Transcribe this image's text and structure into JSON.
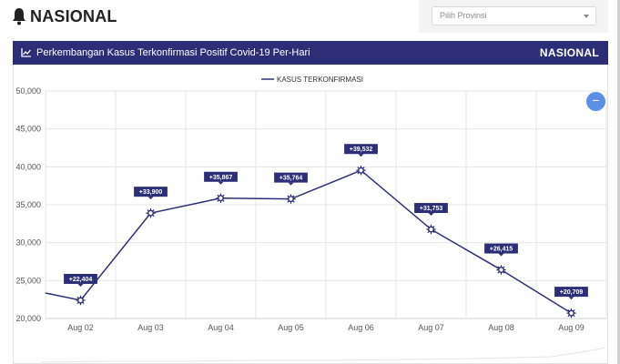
{
  "header": {
    "page_title": "NASIONAL",
    "province_select": {
      "selected": "Pilih Provinsi"
    }
  },
  "panel": {
    "title": "Perkembangan Kasus Terkonfirmasi Positif Covid-19 Per-Hari",
    "scope": "NASIONAL",
    "zoom_button": "−"
  },
  "colors": {
    "accent": "#2c2f77",
    "button": "#5b8ee6"
  },
  "chart_data": {
    "type": "line",
    "title": "Perkembangan Kasus Terkonfirmasi Positif Covid-19 Per-Hari",
    "legend": "KASUS TERKONFIRMASI",
    "legend_position": "top-center",
    "categories": [
      "Aug 02",
      "Aug 03",
      "Aug 04",
      "Aug 05",
      "Aug 06",
      "Aug 07",
      "Aug 08",
      "Aug 09"
    ],
    "series": [
      {
        "name": "KASUS TERKONFIRMASI",
        "values": [
          22404,
          33900,
          35867,
          35764,
          39532,
          31753,
          26415,
          20709
        ],
        "labels": [
          "+22,404",
          "+33,900",
          "+35,867",
          "+35,764",
          "+39,532",
          "+31,753",
          "+26,415",
          "+20,709"
        ]
      }
    ],
    "y_ticks": [
      "20,000",
      "25,000",
      "30,000",
      "35,000",
      "40,000",
      "45,000",
      "50,000"
    ],
    "ylim": [
      20000,
      50000
    ],
    "grid": true,
    "xlabel": "",
    "ylabel": ""
  }
}
